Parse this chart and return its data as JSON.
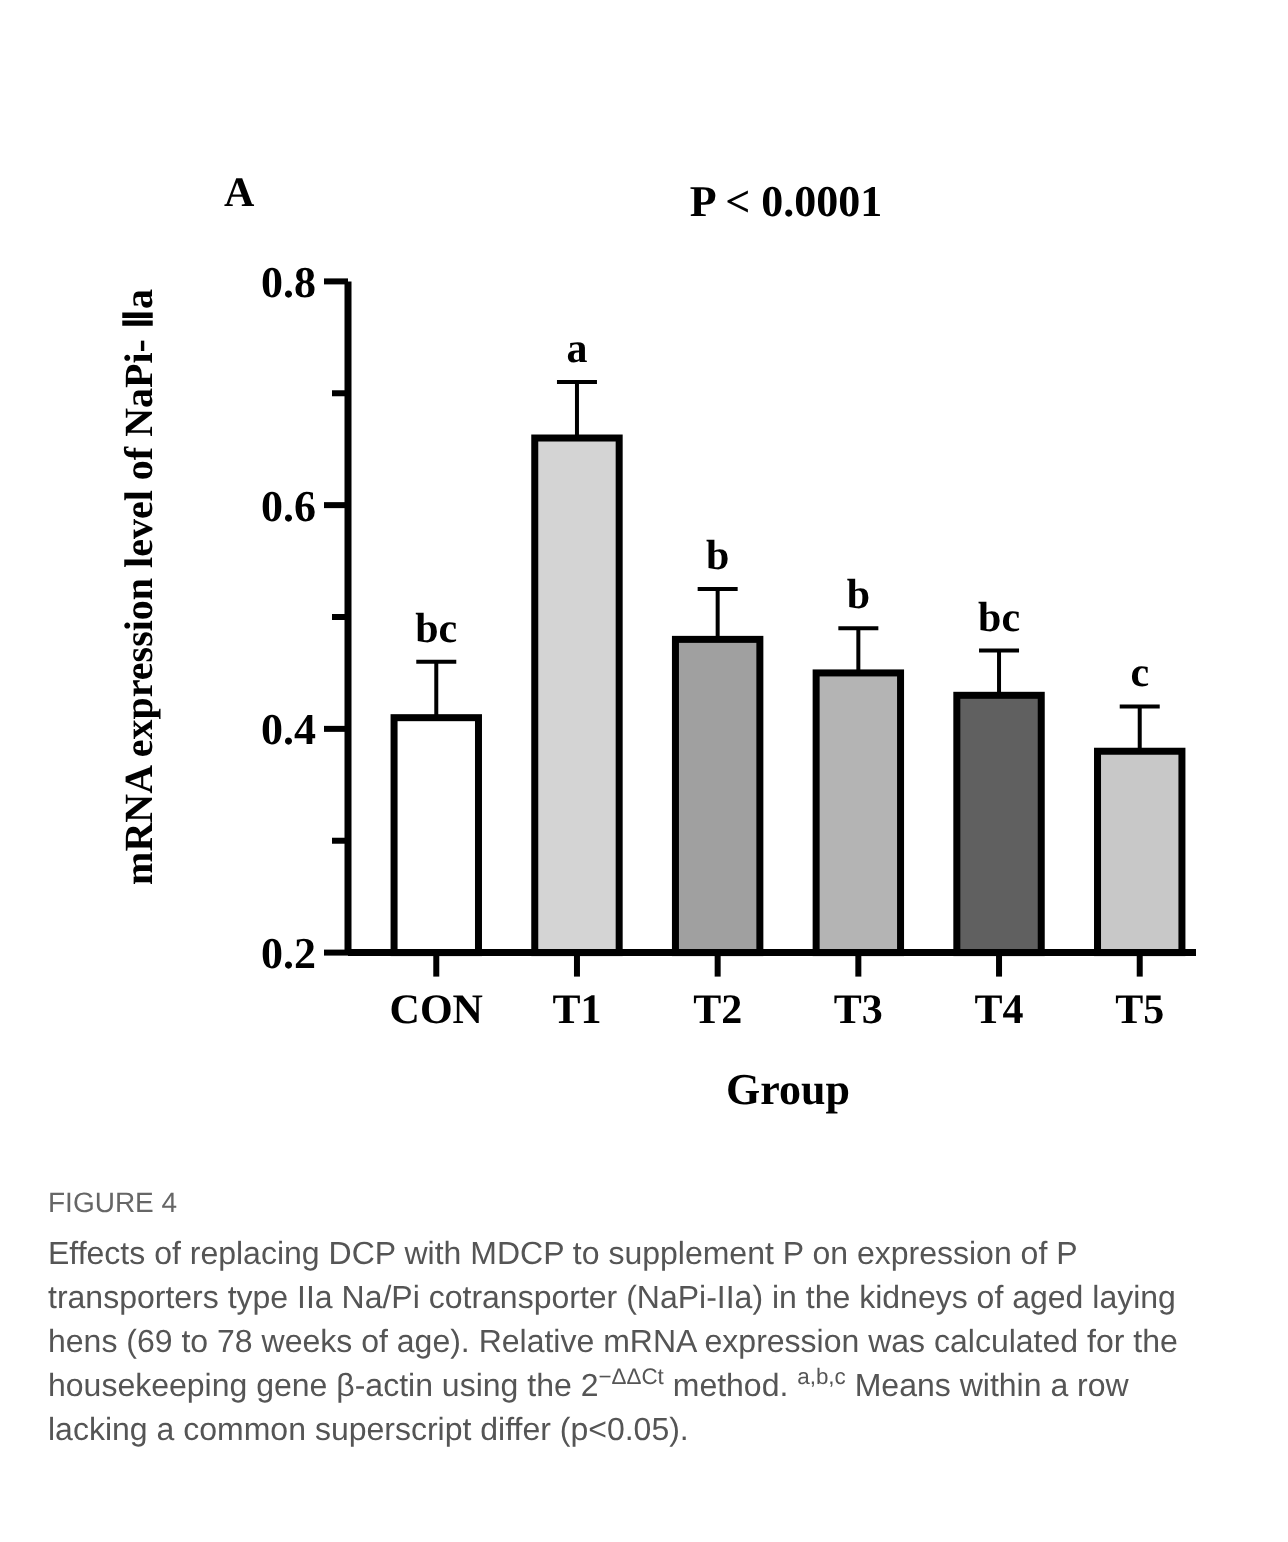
{
  "chart_data": {
    "type": "bar",
    "title": "P < 0.0001",
    "xlabel": "Group",
    "ylabel": "mRNA expression level of NaPi- Ⅱa",
    "categories": [
      "CON",
      "T1",
      "T2",
      "T3",
      "T4",
      "T5"
    ],
    "values": [
      0.41,
      0.66,
      0.48,
      0.45,
      0.43,
      0.38
    ],
    "errors": [
      0.05,
      0.05,
      0.045,
      0.04,
      0.04,
      0.04
    ],
    "colors": [
      "#ffffff",
      "#d4d4d4",
      "#a0a0a0",
      "#b4b4b4",
      "#606060",
      "#c8c8c8"
    ],
    "ylim": [
      0.2,
      0.8
    ],
    "yticks": [
      0.2,
      {
        "value": 0.3,
        "label": null
      },
      0.4,
      {
        "value": 0.5,
        "label": null
      },
      0.6,
      {
        "value": 0.7,
        "label": null
      },
      0.8
    ],
    "grid": false,
    "annotations": [
      {
        "text": "bc",
        "x": "CON",
        "y": 0.46
      },
      {
        "text": "a",
        "x": "T1",
        "y": 0.71
      },
      {
        "text": "b",
        "x": "T2",
        "y": 0.525
      },
      {
        "text": "b",
        "x": "T3",
        "y": 0.49
      },
      {
        "text": "bc",
        "x": "T4",
        "y": 0.47
      },
      {
        "text": "c",
        "x": "T5",
        "y": 0.42
      },
      "A",
      "FIGURE 4",
      "Effects of replacing DCP with MDCP to supplement P on expression of P transporters type IIa Na/Pi cotransporter (NaPi-IIa) in the kidneys of aged laying hens (69 to 78 weeks of age). Relative mRNA expression was calculated for the housekeeping gene β-actin using the 2$^{−ΔΔCt}$ method. $^{a,b,c}$ Means within a row lacking a common superscript differ (p<0.05)."
    ]
  }
}
